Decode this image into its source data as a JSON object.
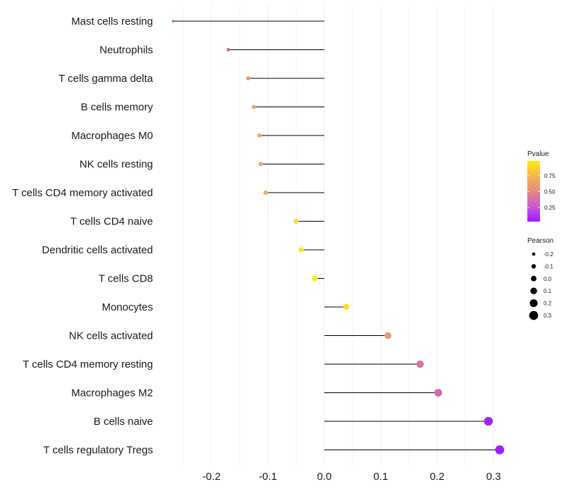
{
  "chart_data": {
    "type": "lollipop",
    "title": "",
    "xlabel": "",
    "ylabel": "",
    "xlim": [
      -0.25,
      0.3
    ],
    "xticks": [
      "-0.2",
      "-0.1",
      "0.0",
      "0.1",
      "0.2",
      "0.3"
    ],
    "xtick_values": [
      -0.2,
      -0.1,
      0.0,
      0.1,
      0.2,
      0.3
    ],
    "grid": true,
    "categories": [
      "Mast cells resting",
      "Neutrophils",
      "T cells gamma delta",
      "B cells memory",
      "Macrophages M0",
      "NK cells resting",
      "T cells CD4 memory activated",
      "T cells CD4 naive",
      "Dendritic cells activated",
      "T cells CD8",
      "Monocytes",
      "NK cells activated",
      "T cells CD4 memory resting",
      "Macrophages M2",
      "B cells naive",
      "T cells regulatory  Tregs"
    ],
    "pearson": [
      -0.268,
      -0.17,
      -0.135,
      -0.125,
      -0.115,
      -0.113,
      -0.104,
      -0.05,
      -0.041,
      -0.017,
      0.039,
      0.113,
      0.17,
      0.202,
      0.291,
      0.311
    ],
    "pvalue": [
      0.3,
      0.35,
      0.55,
      0.65,
      0.7,
      0.7,
      0.72,
      0.9,
      0.95,
      0.97,
      0.92,
      0.6,
      0.4,
      0.35,
      0.07,
      0.05
    ],
    "legend_color": {
      "title": "Pvalue",
      "ticks": [
        "0.75",
        "0.50",
        "0.25"
      ],
      "tick_values": [
        0.75,
        0.5,
        0.25
      ],
      "range": [
        0.03,
        0.98
      ],
      "colors": [
        "#9a1aff",
        "#c859d6",
        "#e8897c",
        "#f2b54f",
        "#ffeb17"
      ],
      "position": "right"
    },
    "legend_size": {
      "title": "Pearson",
      "labels": [
        "-0.2",
        "-0.1",
        "0.0",
        "0.1",
        "0.2",
        "0.3"
      ],
      "values": [
        -0.2,
        -0.1,
        0.0,
        0.1,
        0.2,
        0.3
      ],
      "position": "right"
    }
  }
}
